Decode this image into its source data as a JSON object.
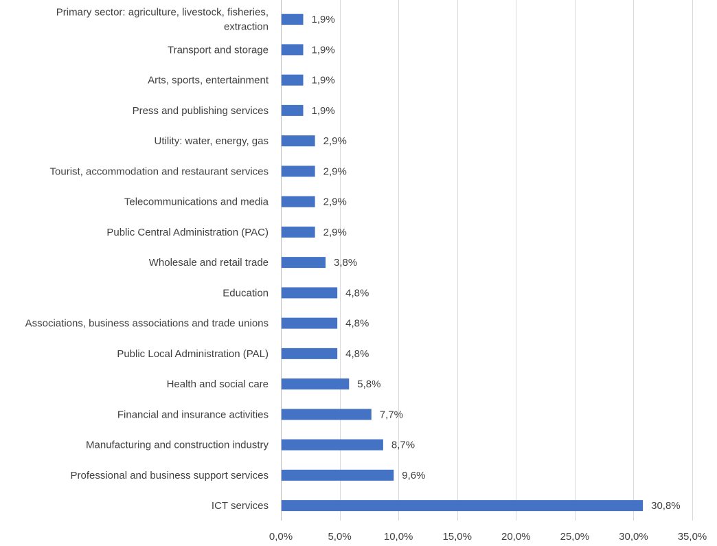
{
  "chart_data": {
    "type": "bar",
    "orientation": "horizontal",
    "title": "",
    "xlabel": "",
    "ylabel": "",
    "xlim": [
      0,
      35
    ],
    "grid": "vertical",
    "bar_color": "#4472c4",
    "categories": [
      [
        "Primary sector: agriculture, livestock, fisheries,",
        "extraction"
      ],
      [
        "Transport and storage"
      ],
      [
        "Arts, sports, entertainment"
      ],
      [
        "Press and publishing services"
      ],
      [
        "Utility: water, energy, gas"
      ],
      [
        "Tourist, accommodation and restaurant services"
      ],
      [
        "Telecommunications and media"
      ],
      [
        "Public Central Administration (PAC)"
      ],
      [
        "Wholesale and retail trade"
      ],
      [
        "Education"
      ],
      [
        "Associations, business associations and trade unions"
      ],
      [
        "Public Local Administration (PAL)"
      ],
      [
        "Health and social care"
      ],
      [
        "Financial and insurance activities"
      ],
      [
        "Manufacturing and construction industry"
      ],
      [
        "Professional and business support services"
      ],
      [
        "ICT services"
      ]
    ],
    "values": [
      1.9,
      1.9,
      1.9,
      1.9,
      2.9,
      2.9,
      2.9,
      2.9,
      3.8,
      4.8,
      4.8,
      4.8,
      5.8,
      7.7,
      8.7,
      9.6,
      30.8
    ],
    "value_labels": [
      "1,9%",
      "1,9%",
      "1,9%",
      "1,9%",
      "2,9%",
      "2,9%",
      "2,9%",
      "2,9%",
      "3,8%",
      "4,8%",
      "4,8%",
      "4,8%",
      "5,8%",
      "7,7%",
      "8,7%",
      "9,6%",
      "30,8%"
    ],
    "x_ticks": [
      0,
      5,
      10,
      15,
      20,
      25,
      30,
      35
    ],
    "x_tick_labels": [
      "0,0%",
      "5,0%",
      "10,0%",
      "15,0%",
      "20,0%",
      "25,0%",
      "30,0%",
      "35,0%"
    ]
  }
}
